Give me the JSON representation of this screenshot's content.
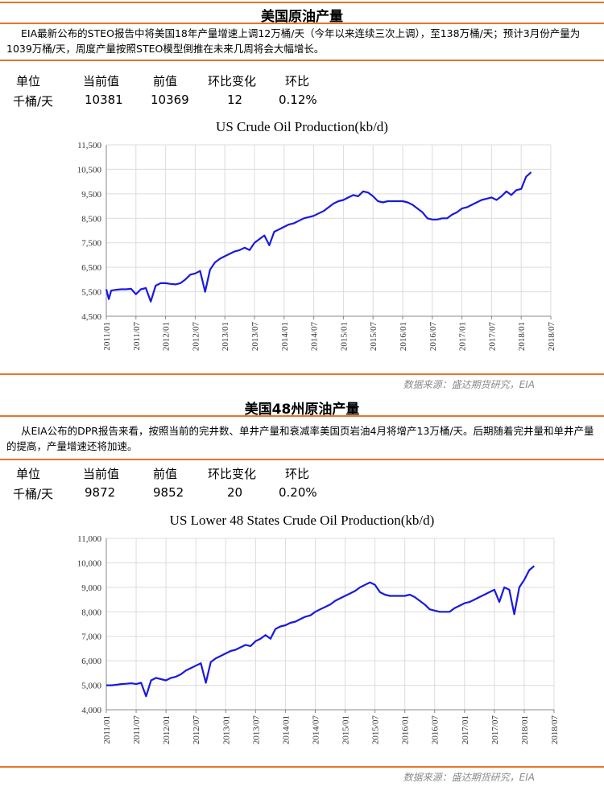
{
  "sections": [
    {
      "heading": "美国原油产量",
      "summary": "EIA最新公布的STEO报告中将美国18年产量增速上调12万桶/天（今年以来连续三次上调），至138万桶/天；预计3月份产量为1039万桶/天，周度产量按照STEO模型倒推在未来几周将会大幅增长。",
      "table": {
        "headers": [
          "单位",
          "当前值",
          "前值",
          "环比变化",
          "环比"
        ],
        "row": [
          "千桶/天",
          "10381",
          "10369",
          "12",
          "0.12%"
        ]
      },
      "source": "数据来源：盛达期货研究，EIA"
    },
    {
      "heading": "美国48州原油产量",
      "summary": "从EIA公布的DPR报告来看，按照当前的完井数、单井产量和衰减率美国页岩油4月将增产13万桶/天。后期随着完井量和单井产量的提高，产量增速还将加速。",
      "table": {
        "headers": [
          "单位",
          "当前值",
          "前值",
          "环比变化",
          "环比"
        ],
        "row": [
          "千桶/天",
          "9872",
          "9852",
          "20",
          "0.20%"
        ]
      },
      "source": "数据来源：盛达期货研究，EIA"
    }
  ],
  "chart_data": [
    {
      "type": "line",
      "title": "US Crude Oil Production(kb/d)",
      "color": "#1a1adb",
      "grid": true,
      "ylim": [
        4500,
        11500
      ],
      "yticks": [
        "4,500",
        "5,500",
        "6,500",
        "7,500",
        "8,500",
        "9,500",
        "10,500",
        "11,500"
      ],
      "xticks": [
        "2011/01",
        "2011/07",
        "2012/01",
        "2012/07",
        "2013/01",
        "2013/07",
        "2014/01",
        "2014/07",
        "2015/01",
        "2015/07",
        "2016/01",
        "2016/07",
        "2017/01",
        "2017/07",
        "2018/01",
        "2018/07"
      ],
      "x": [
        "2011/01",
        "2011/01",
        "2011/02",
        "2011/03",
        "2011/04",
        "2011/05",
        "2011/06",
        "2011/07",
        "2011/08",
        "2011/09",
        "2011/10",
        "2011/11",
        "2011/12",
        "2012/01",
        "2012/02",
        "2012/03",
        "2012/04",
        "2012/05",
        "2012/06",
        "2012/07",
        "2012/08",
        "2012/09",
        "2012/10",
        "2012/11",
        "2012/12",
        "2013/01",
        "2013/02",
        "2013/03",
        "2013/04",
        "2013/05",
        "2013/06",
        "2013/07",
        "2013/08",
        "2013/09",
        "2013/10",
        "2013/11",
        "2013/12",
        "2014/01",
        "2014/02",
        "2014/03",
        "2014/04",
        "2014/05",
        "2014/06",
        "2014/07",
        "2014/08",
        "2014/09",
        "2014/10",
        "2014/11",
        "2014/12",
        "2015/01",
        "2015/02",
        "2015/03",
        "2015/04",
        "2015/05",
        "2015/06",
        "2015/07",
        "2015/08",
        "2015/09",
        "2015/10",
        "2015/11",
        "2015/12",
        "2016/01",
        "2016/02",
        "2016/03",
        "2016/04",
        "2016/05",
        "2016/06",
        "2016/07",
        "2016/08",
        "2016/09",
        "2016/10",
        "2016/11",
        "2016/12",
        "2017/01",
        "2017/02",
        "2017/03",
        "2017/04",
        "2017/05",
        "2017/06",
        "2017/07",
        "2017/08",
        "2017/09",
        "2017/10",
        "2017/11",
        "2017/12",
        "2018/01",
        "2018/02",
        "2018/03"
      ],
      "values": [
        5600,
        5200,
        5550,
        5580,
        5600,
        5600,
        5620,
        5400,
        5600,
        5650,
        5100,
        5750,
        5850,
        5850,
        5820,
        5800,
        5850,
        6000,
        6200,
        6250,
        6350,
        5500,
        6400,
        6700,
        6850,
        6950,
        7050,
        7150,
        7200,
        7300,
        7200,
        7500,
        7650,
        7800,
        7400,
        7950,
        8050,
        8150,
        8250,
        8300,
        8400,
        8500,
        8550,
        8600,
        8700,
        8800,
        8950,
        9100,
        9200,
        9250,
        9350,
        9450,
        9400,
        9600,
        9550,
        9400,
        9200,
        9150,
        9200,
        9200,
        9200,
        9200,
        9150,
        9050,
        8900,
        8750,
        8500,
        8450,
        8450,
        8500,
        8500,
        8650,
        8750,
        8900,
        8950,
        9050,
        9150,
        9250,
        9300,
        9350,
        9250,
        9400,
        9600,
        9450,
        9650,
        9700,
        10200,
        10380
      ]
    },
    {
      "type": "line",
      "title": "US Lower 48 States Crude Oil Production(kb/d)",
      "color": "#1a1adb",
      "grid": true,
      "ylim": [
        4000,
        11000
      ],
      "yticks": [
        "4,000",
        "5,000",
        "6,000",
        "7,000",
        "8,000",
        "9,000",
        "10,000",
        "11,000"
      ],
      "xticks": [
        "2011/01",
        "2011/07",
        "2012/01",
        "2012/07",
        "2013/01",
        "2013/07",
        "2014/01",
        "2014/07",
        "2015/01",
        "2015/07",
        "2016/01",
        "2016/07",
        "2017/01",
        "2017/07",
        "2018/01",
        "2018/07"
      ],
      "x": [
        "2011/01",
        "2011/02",
        "2011/03",
        "2011/04",
        "2011/05",
        "2011/06",
        "2011/07",
        "2011/08",
        "2011/09",
        "2011/10",
        "2011/11",
        "2011/12",
        "2012/01",
        "2012/02",
        "2012/03",
        "2012/04",
        "2012/05",
        "2012/06",
        "2012/07",
        "2012/08",
        "2012/09",
        "2012/10",
        "2012/11",
        "2012/12",
        "2013/01",
        "2013/02",
        "2013/03",
        "2013/04",
        "2013/05",
        "2013/06",
        "2013/07",
        "2013/08",
        "2013/09",
        "2013/10",
        "2013/11",
        "2013/12",
        "2014/01",
        "2014/02",
        "2014/03",
        "2014/04",
        "2014/05",
        "2014/06",
        "2014/07",
        "2014/08",
        "2014/09",
        "2014/10",
        "2014/11",
        "2014/12",
        "2015/01",
        "2015/02",
        "2015/03",
        "2015/04",
        "2015/05",
        "2015/06",
        "2015/07",
        "2015/08",
        "2015/09",
        "2015/10",
        "2015/11",
        "2015/12",
        "2016/01",
        "2016/02",
        "2016/03",
        "2016/04",
        "2016/05",
        "2016/06",
        "2016/07",
        "2016/08",
        "2016/09",
        "2016/10",
        "2016/11",
        "2016/12",
        "2017/01",
        "2017/02",
        "2017/03",
        "2017/04",
        "2017/05",
        "2017/06",
        "2017/07",
        "2017/08",
        "2017/09",
        "2017/10",
        "2017/11",
        "2017/12",
        "2018/01",
        "2018/02",
        "2018/03"
      ],
      "values": [
        5000,
        5000,
        5020,
        5050,
        5060,
        5080,
        5050,
        5100,
        4550,
        5200,
        5300,
        5250,
        5200,
        5300,
        5350,
        5450,
        5600,
        5700,
        5800,
        5900,
        5100,
        5950,
        6100,
        6200,
        6300,
        6400,
        6450,
        6550,
        6650,
        6600,
        6800,
        6900,
        7050,
        6900,
        7300,
        7400,
        7450,
        7550,
        7600,
        7700,
        7800,
        7850,
        8000,
        8100,
        8200,
        8300,
        8450,
        8550,
        8650,
        8750,
        8850,
        9000,
        9100,
        9200,
        9100,
        8800,
        8700,
        8650,
        8650,
        8650,
        8650,
        8700,
        8600,
        8450,
        8300,
        8100,
        8050,
        8000,
        8000,
        8000,
        8150,
        8250,
        8350,
        8400,
        8500,
        8600,
        8700,
        8800,
        8900,
        8400,
        9000,
        8900,
        7900,
        9000,
        9300,
        9700,
        9870
      ]
    }
  ]
}
